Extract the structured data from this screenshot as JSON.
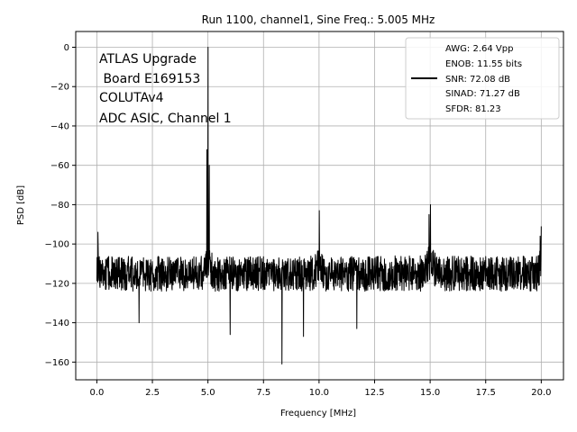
{
  "chart_data": {
    "type": "line",
    "title": "Run 1100, channel1, Sine Freq.: 5.005 MHz",
    "xlabel": "Frequency [MHz]",
    "ylabel": "PSD [dB]",
    "xlim": [
      -0.95,
      21.0
    ],
    "ylim": [
      -169,
      8
    ],
    "xticks": [
      0.0,
      2.5,
      5.0,
      7.5,
      10.0,
      12.5,
      15.0,
      17.5,
      20.0
    ],
    "xtick_labels": [
      "0.0",
      "2.5",
      "5.0",
      "7.5",
      "10.0",
      "12.5",
      "15.0",
      "17.5",
      "20.0"
    ],
    "yticks": [
      0,
      -20,
      -40,
      -60,
      -80,
      -100,
      -120,
      -140,
      -160
    ],
    "ytick_labels": [
      "0",
      "−20",
      "−40",
      "−60",
      "−80",
      "−100",
      "−120",
      "−140",
      "−160"
    ],
    "grid": true,
    "legend_position": "top-right",
    "annotation_lines": [
      "ATLAS Upgrade",
      " Board E169153",
      "COLUTAv4",
      "ADC ASIC, Channel 1"
    ],
    "legend_lines": [
      "AWG: 2.64 Vpp",
      "ENOB: 11.55 bits",
      "SNR: 72.08 dB",
      "SINAD: 71.27 dB",
      "SFDR: 81.23"
    ],
    "series": [
      {
        "noise_floor_db": -115,
        "noise_spread_db": 9,
        "peaks": [
          {
            "x": 5.005,
            "y": 0
          },
          {
            "x": 4.95,
            "y": -52
          },
          {
            "x": 5.06,
            "y": -60
          },
          {
            "x": 10.01,
            "y": -83
          },
          {
            "x": 15.015,
            "y": -80
          },
          {
            "x": 14.95,
            "y": -85
          },
          {
            "x": 0.05,
            "y": -94
          },
          {
            "x": 20.0,
            "y": -91
          },
          {
            "x": 19.95,
            "y": -96
          }
        ],
        "dips": [
          {
            "x": 1.9,
            "y": -140
          },
          {
            "x": 6.0,
            "y": -146
          },
          {
            "x": 8.33,
            "y": -161
          },
          {
            "x": 9.3,
            "y": -147
          },
          {
            "x": 11.7,
            "y": -143
          }
        ]
      }
    ],
    "line_color": "#000000",
    "grid_color": "#b0b0b0"
  }
}
